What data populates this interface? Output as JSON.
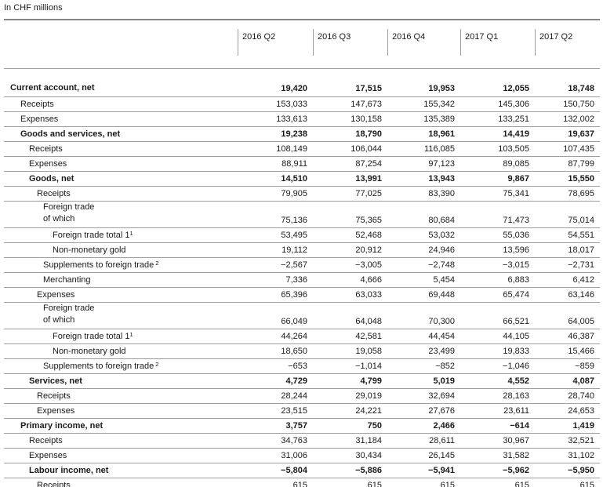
{
  "page": {
    "caption": "In CHF millions"
  },
  "colors": {
    "text": "#1a1a1a",
    "thick_rule": "#868686",
    "row_rule": "#9e9e9e",
    "background": "#ffffff"
  },
  "table": {
    "columns": [
      "2016 Q2",
      "2016 Q3",
      "2016 Q4",
      "2017 Q1",
      "2017 Q2"
    ],
    "rows": [
      {
        "label": "Current account, net",
        "level": 0,
        "bold": true,
        "values": [
          "19,420",
          "17,515",
          "19,953",
          "12,055",
          "18,748"
        ]
      },
      {
        "label": "Receipts",
        "level": 1,
        "bold": false,
        "values": [
          "153,033",
          "147,673",
          "155,342",
          "145,306",
          "150,750"
        ]
      },
      {
        "label": "Expenses",
        "level": 1,
        "bold": false,
        "values": [
          "133,613",
          "130,158",
          "135,389",
          "133,251",
          "132,002"
        ]
      },
      {
        "label": "Goods and services, net",
        "level": 1,
        "bold": true,
        "values": [
          "19,238",
          "18,790",
          "18,961",
          "14,419",
          "19,637"
        ]
      },
      {
        "label": "Receipts",
        "level": 2,
        "bold": false,
        "values": [
          "108,149",
          "106,044",
          "116,085",
          "103,505",
          "107,435"
        ]
      },
      {
        "label": "Expenses",
        "level": 2,
        "bold": false,
        "values": [
          "88,911",
          "87,254",
          "97,123",
          "89,085",
          "87,799"
        ]
      },
      {
        "label": "Goods, net",
        "level": 2,
        "bold": true,
        "values": [
          "14,510",
          "13,991",
          "13,943",
          "9,867",
          "15,550"
        ]
      },
      {
        "label": "Receipts",
        "level": 3,
        "bold": false,
        "values": [
          "79,905",
          "77,025",
          "83,390",
          "75,341",
          "78,695"
        ]
      },
      {
        "label": "Foreign trade",
        "label2": "of which",
        "level": 4,
        "bold": false,
        "values": [
          "75,136",
          "75,365",
          "80,684",
          "71,473",
          "75,014"
        ]
      },
      {
        "label": "Foreign trade total 1",
        "sup": "1",
        "level": 5,
        "bold": false,
        "values": [
          "53,495",
          "52,468",
          "53,032",
          "55,036",
          "54,551"
        ]
      },
      {
        "label": "Non-monetary gold",
        "level": 5,
        "bold": false,
        "values": [
          "19,112",
          "20,912",
          "24,946",
          "13,596",
          "18,017"
        ]
      },
      {
        "label": "Supplements to foreign trade",
        "sup": "2",
        "sup_space": true,
        "level": 4,
        "bold": false,
        "values": [
          "−2,567",
          "−3,005",
          "−2,748",
          "−3,015",
          "−2,731"
        ]
      },
      {
        "label": "Merchanting",
        "level": 4,
        "bold": false,
        "values": [
          "7,336",
          "4,666",
          "5,454",
          "6,883",
          "6,412"
        ]
      },
      {
        "label": "Expenses",
        "level": 3,
        "bold": false,
        "values": [
          "65,396",
          "63,033",
          "69,448",
          "65,474",
          "63,146"
        ]
      },
      {
        "label": "Foreign trade",
        "label2": "of which",
        "level": 4,
        "bold": false,
        "values": [
          "66,049",
          "64,048",
          "70,300",
          "66,521",
          "64,005"
        ]
      },
      {
        "label": "Foreign trade total 1",
        "sup": "1",
        "level": 5,
        "bold": false,
        "values": [
          "44,264",
          "42,581",
          "44,454",
          "44,105",
          "46,387"
        ]
      },
      {
        "label": "Non-monetary gold",
        "level": 5,
        "bold": false,
        "values": [
          "18,650",
          "19,058",
          "23,499",
          "19,833",
          "15,466"
        ]
      },
      {
        "label": "Supplements to foreign trade",
        "sup": "2",
        "sup_space": true,
        "level": 4,
        "bold": false,
        "values": [
          "−653",
          "−1,014",
          "−852",
          "−1,046",
          "−859"
        ]
      },
      {
        "label": "Services, net",
        "level": 2,
        "bold": true,
        "values": [
          "4,729",
          "4,799",
          "5,019",
          "4,552",
          "4,087"
        ]
      },
      {
        "label": "Receipts",
        "level": 3,
        "bold": false,
        "values": [
          "28,244",
          "29,019",
          "32,694",
          "28,163",
          "28,740"
        ]
      },
      {
        "label": "Expenses",
        "level": 3,
        "bold": false,
        "values": [
          "23,515",
          "24,221",
          "27,676",
          "23,611",
          "24,653"
        ]
      },
      {
        "label": "Primary income, net",
        "level": 1,
        "bold": true,
        "values": [
          "3,757",
          "750",
          "2,466",
          "−614",
          "1,419"
        ]
      },
      {
        "label": "Receipts",
        "level": 2,
        "bold": false,
        "values": [
          "34,763",
          "31,184",
          "28,611",
          "30,967",
          "32,521"
        ]
      },
      {
        "label": "Expenses",
        "level": 2,
        "bold": false,
        "values": [
          "31,006",
          "30,434",
          "26,145",
          "31,582",
          "31,102"
        ]
      },
      {
        "label": "Labour income, net",
        "level": 2,
        "bold": true,
        "values": [
          "−5,804",
          "−5,886",
          "−5,941",
          "−5,962",
          "−5,950"
        ]
      },
      {
        "label": "Receipts",
        "level": 3,
        "bold": false,
        "values": [
          "615",
          "615",
          "615",
          "615",
          "615"
        ]
      }
    ]
  }
}
